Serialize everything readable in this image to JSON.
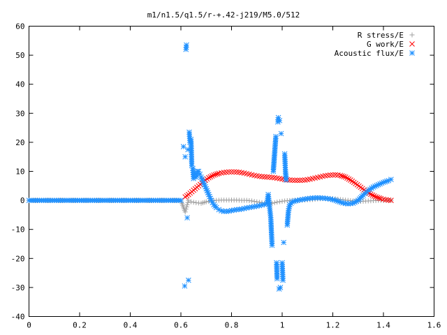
{
  "chart_data": {
    "type": "scatter",
    "title": "m1/n1.5/q1.5/r-+.42-j219/M5.0/512",
    "xlabel": "",
    "ylabel": "",
    "xlim": [
      0,
      1.6
    ],
    "ylim": [
      -40,
      60
    ],
    "x_ticks": [
      "0",
      "0.2",
      "0.4",
      "0.6",
      "0.8",
      "1",
      "1.2",
      "1.4",
      "1.6"
    ],
    "y_ticks": [
      "60",
      "50",
      "40",
      "30",
      "20",
      "10",
      "0",
      "-10",
      "-20",
      "-30",
      "-40"
    ],
    "legend_position": "top-right",
    "grid": false,
    "series": [
      {
        "name": "R stress/E",
        "marker": "plus",
        "color": "#a0a0a0",
        "points": [
          [
            0.0,
            0
          ],
          [
            0.05,
            0
          ],
          [
            0.1,
            0
          ],
          [
            0.15,
            0
          ],
          [
            0.2,
            0
          ],
          [
            0.25,
            0
          ],
          [
            0.3,
            0
          ],
          [
            0.35,
            0
          ],
          [
            0.4,
            0
          ],
          [
            0.45,
            0
          ],
          [
            0.5,
            0
          ],
          [
            0.55,
            0
          ],
          [
            0.6,
            0
          ],
          [
            0.617,
            -4
          ],
          [
            0.62,
            -3
          ],
          [
            0.625,
            -1.5
          ],
          [
            0.63,
            0
          ],
          [
            0.64,
            -0.5
          ],
          [
            0.66,
            -0.8
          ],
          [
            0.68,
            -1.0
          ],
          [
            0.7,
            -0.5
          ],
          [
            0.72,
            -0.2
          ],
          [
            0.74,
            0
          ],
          [
            0.76,
            0.1
          ],
          [
            0.78,
            0.1
          ],
          [
            0.8,
            0.1
          ],
          [
            0.82,
            0.1
          ],
          [
            0.84,
            0
          ],
          [
            0.86,
            0
          ],
          [
            0.88,
            -0.2
          ],
          [
            0.9,
            -0.5
          ],
          [
            0.92,
            -0.8
          ],
          [
            0.94,
            -1.2
          ],
          [
            0.96,
            -1.0
          ],
          [
            0.98,
            -0.6
          ],
          [
            1.0,
            -0.3
          ],
          [
            1.02,
            -0.1
          ],
          [
            1.04,
            0
          ],
          [
            1.06,
            0
          ],
          [
            1.08,
            0.1
          ],
          [
            1.1,
            0.2
          ],
          [
            1.12,
            0.3
          ],
          [
            1.14,
            0.5
          ],
          [
            1.16,
            0.6
          ],
          [
            1.18,
            0.7
          ],
          [
            1.2,
            0.6
          ],
          [
            1.22,
            0.4
          ],
          [
            1.24,
            0.2
          ],
          [
            1.26,
            0
          ],
          [
            1.28,
            -0.2
          ],
          [
            1.3,
            -0.4
          ],
          [
            1.32,
            -0.3
          ],
          [
            1.34,
            -0.2
          ],
          [
            1.36,
            -0.1
          ],
          [
            1.38,
            0
          ],
          [
            1.4,
            0
          ],
          [
            1.42,
            0
          ],
          [
            1.43,
            0
          ]
        ]
      },
      {
        "name": "G work/E",
        "marker": "cross",
        "color": "#ff0000",
        "points": [
          [
            0.617,
            1.2
          ],
          [
            0.63,
            2.0
          ],
          [
            0.65,
            3.5
          ],
          [
            0.67,
            5.0
          ],
          [
            0.69,
            6.5
          ],
          [
            0.71,
            7.8
          ],
          [
            0.73,
            8.7
          ],
          [
            0.75,
            9.3
          ],
          [
            0.77,
            9.6
          ],
          [
            0.79,
            9.8
          ],
          [
            0.81,
            9.8
          ],
          [
            0.83,
            9.7
          ],
          [
            0.85,
            9.4
          ],
          [
            0.87,
            9.0
          ],
          [
            0.89,
            8.6
          ],
          [
            0.91,
            8.3
          ],
          [
            0.93,
            8.1
          ],
          [
            0.95,
            8.0
          ],
          [
            0.97,
            7.8
          ],
          [
            0.99,
            7.5
          ],
          [
            1.01,
            7.2
          ],
          [
            1.03,
            7.0
          ],
          [
            1.05,
            6.9
          ],
          [
            1.07,
            6.9
          ],
          [
            1.09,
            7.0
          ],
          [
            1.11,
            7.3
          ],
          [
            1.13,
            7.7
          ],
          [
            1.15,
            8.1
          ],
          [
            1.17,
            8.5
          ],
          [
            1.19,
            8.7
          ],
          [
            1.21,
            8.8
          ],
          [
            1.23,
            8.6
          ],
          [
            1.25,
            8.0
          ],
          [
            1.27,
            7.0
          ],
          [
            1.29,
            5.8
          ],
          [
            1.31,
            4.5
          ],
          [
            1.33,
            3.2
          ],
          [
            1.35,
            2.1
          ],
          [
            1.37,
            1.2
          ],
          [
            1.39,
            0.6
          ],
          [
            1.41,
            0.2
          ],
          [
            1.43,
            0.0
          ]
        ]
      },
      {
        "name": "Acoustic flux/E",
        "marker": "star",
        "color": "#1e90ff",
        "points": [
          [
            0.0,
            0
          ],
          [
            0.025,
            0
          ],
          [
            0.05,
            0
          ],
          [
            0.075,
            0
          ],
          [
            0.1,
            0
          ],
          [
            0.125,
            0
          ],
          [
            0.15,
            0
          ],
          [
            0.175,
            0
          ],
          [
            0.2,
            0
          ],
          [
            0.225,
            0
          ],
          [
            0.25,
            0
          ],
          [
            0.275,
            0
          ],
          [
            0.3,
            0
          ],
          [
            0.325,
            0
          ],
          [
            0.35,
            0
          ],
          [
            0.375,
            0
          ],
          [
            0.4,
            0
          ],
          [
            0.425,
            0
          ],
          [
            0.45,
            0
          ],
          [
            0.475,
            0
          ],
          [
            0.5,
            0
          ],
          [
            0.525,
            0
          ],
          [
            0.55,
            0
          ],
          [
            0.575,
            0
          ],
          [
            0.6,
            0
          ],
          [
            0.61,
            18.5
          ],
          [
            0.615,
            -29.5
          ],
          [
            0.617,
            15
          ],
          [
            0.62,
            52
          ],
          [
            0.622,
            53.5
          ],
          [
            0.625,
            -6
          ],
          [
            0.628,
            17.5
          ],
          [
            0.63,
            -27.5
          ],
          [
            0.633,
            23.5
          ],
          [
            0.636,
            20
          ],
          [
            0.64,
            21
          ],
          [
            0.643,
            12
          ],
          [
            0.647,
            11
          ],
          [
            0.65,
            7.5
          ],
          [
            0.655,
            9
          ],
          [
            0.66,
            8
          ],
          [
            0.665,
            10
          ],
          [
            0.67,
            10
          ],
          [
            0.675,
            9
          ],
          [
            0.68,
            8
          ],
          [
            0.69,
            6
          ],
          [
            0.7,
            4
          ],
          [
            0.71,
            2
          ],
          [
            0.72,
            0
          ],
          [
            0.73,
            -1.5
          ],
          [
            0.74,
            -2.5
          ],
          [
            0.75,
            -3.2
          ],
          [
            0.76,
            -3.6
          ],
          [
            0.77,
            -3.8
          ],
          [
            0.78,
            -3.8
          ],
          [
            0.79,
            -3.7
          ],
          [
            0.8,
            -3.5
          ],
          [
            0.82,
            -3.2
          ],
          [
            0.84,
            -3.0
          ],
          [
            0.86,
            -2.6
          ],
          [
            0.88,
            -2.3
          ],
          [
            0.9,
            -2.0
          ],
          [
            0.92,
            -1.6
          ],
          [
            0.94,
            -1.2
          ],
          [
            0.945,
            2
          ],
          [
            0.95,
            -2
          ],
          [
            0.955,
            -6
          ],
          [
            0.96,
            -15.5
          ],
          [
            0.965,
            10
          ],
          [
            0.97,
            16
          ],
          [
            0.975,
            22
          ],
          [
            0.978,
            -21.5
          ],
          [
            0.98,
            -27
          ],
          [
            0.983,
            27
          ],
          [
            0.985,
            28.5
          ],
          [
            0.988,
            -30.5
          ],
          [
            0.99,
            27.5
          ],
          [
            0.993,
            -30
          ],
          [
            0.996,
            23
          ],
          [
            1.0,
            -21.5
          ],
          [
            1.003,
            -27.5
          ],
          [
            1.006,
            -14.5
          ],
          [
            1.01,
            16
          ],
          [
            1.013,
            10
          ],
          [
            1.016,
            7
          ],
          [
            1.02,
            -8.5
          ],
          [
            1.025,
            -3.5
          ],
          [
            1.03,
            -1.5
          ],
          [
            1.04,
            -0.5
          ],
          [
            1.06,
            0
          ],
          [
            1.08,
            0.3
          ],
          [
            1.1,
            0.6
          ],
          [
            1.12,
            0.8
          ],
          [
            1.14,
            0.9
          ],
          [
            1.16,
            0.8
          ],
          [
            1.18,
            0.6
          ],
          [
            1.2,
            0.3
          ],
          [
            1.22,
            -0.3
          ],
          [
            1.24,
            -0.9
          ],
          [
            1.26,
            -1.2
          ],
          [
            1.28,
            -1.0
          ],
          [
            1.3,
            0
          ],
          [
            1.32,
            1.8
          ],
          [
            1.34,
            3.4
          ],
          [
            1.36,
            4.6
          ],
          [
            1.38,
            5.4
          ],
          [
            1.4,
            6.2
          ],
          [
            1.42,
            6.8
          ],
          [
            1.43,
            7.2
          ]
        ]
      }
    ]
  }
}
